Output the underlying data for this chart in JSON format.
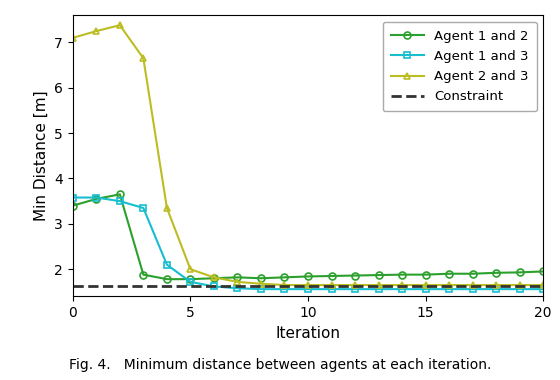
{
  "title": "",
  "xlabel": "Iteration",
  "ylabel": "Min Distance [m]",
  "caption": "Fig. 4.   Minimum distance between agents at each iteration.",
  "xlim": [
    0,
    20
  ],
  "ylim": [
    1.4,
    7.6
  ],
  "yticks": [
    2,
    3,
    4,
    5,
    6,
    7
  ],
  "xticks": [
    0,
    5,
    10,
    15,
    20
  ],
  "constraint_value": 1.62,
  "agent12": {
    "x": [
      0,
      1,
      2,
      3,
      4,
      5,
      6,
      7,
      8,
      9,
      10,
      11,
      12,
      13,
      14,
      15,
      16,
      17,
      18,
      19,
      20
    ],
    "y": [
      3.4,
      3.55,
      3.65,
      1.88,
      1.78,
      1.78,
      1.8,
      1.82,
      1.8,
      1.82,
      1.84,
      1.85,
      1.86,
      1.87,
      1.88,
      1.88,
      1.9,
      1.9,
      1.92,
      1.93,
      1.95
    ],
    "color": "#2ca02c",
    "marker": "o",
    "label": "Agent 1 and 2"
  },
  "agent13": {
    "x": [
      0,
      1,
      2,
      3,
      4,
      5,
      6,
      7,
      8,
      9,
      10,
      11,
      12,
      13,
      14,
      15,
      16,
      17,
      18,
      19,
      20
    ],
    "y": [
      3.58,
      3.58,
      3.5,
      3.35,
      2.1,
      1.72,
      1.62,
      1.58,
      1.56,
      1.56,
      1.56,
      1.56,
      1.56,
      1.56,
      1.56,
      1.56,
      1.56,
      1.56,
      1.56,
      1.56,
      1.56
    ],
    "color": "#17becf",
    "marker": "s",
    "label": "Agent 1 and 3"
  },
  "agent23": {
    "x": [
      0,
      1,
      2,
      3,
      4,
      5,
      6,
      7,
      8,
      9,
      10,
      11,
      12,
      13,
      14,
      15,
      16,
      17,
      18,
      19,
      20
    ],
    "y": [
      7.1,
      7.25,
      7.38,
      6.65,
      3.35,
      2.0,
      1.82,
      1.72,
      1.68,
      1.65,
      1.65,
      1.65,
      1.65,
      1.65,
      1.65,
      1.65,
      1.65,
      1.65,
      1.65,
      1.65,
      1.65
    ],
    "color": "#bcbd22",
    "marker": "^",
    "label": "Agent 2 and 3"
  },
  "background_color": "#ffffff",
  "legend_fontsize": 9.5,
  "axis_fontsize": 11,
  "tick_fontsize": 10,
  "caption_fontsize": 10,
  "linewidth": 1.5,
  "markersize": 5
}
